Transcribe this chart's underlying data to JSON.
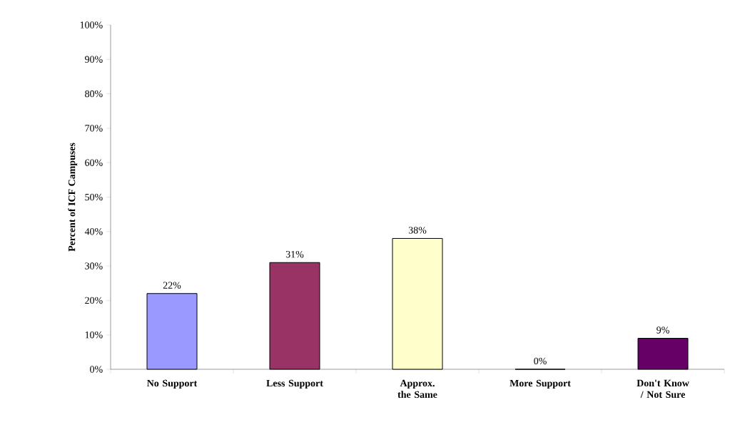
{
  "chart_data": {
    "type": "bar",
    "ylabel": "Percent of ICF Campuses",
    "categories": [
      "No Support",
      "Less Support",
      "Approx. the Same",
      "More Support",
      "Don't Know / Not Sure"
    ],
    "values": [
      22,
      31,
      38,
      0,
      9
    ],
    "value_labels": [
      "22%",
      "31%",
      "38%",
      "0%",
      "9%"
    ],
    "colors": [
      "#9999ff",
      "#993366",
      "#ffffcc",
      "#ffffff",
      "#660066"
    ],
    "ylim": [
      0,
      100
    ],
    "yticks": [
      {
        "value": 0,
        "label": "0%"
      },
      {
        "value": 10,
        "label": "10%"
      },
      {
        "value": 20,
        "label": "20%"
      },
      {
        "value": 30,
        "label": "30%"
      },
      {
        "value": 40,
        "label": "40%"
      },
      {
        "value": 50,
        "label": "50%"
      },
      {
        "value": 60,
        "label": "60%"
      },
      {
        "value": 70,
        "label": "70%"
      },
      {
        "value": 80,
        "label": "80%"
      },
      {
        "value": 90,
        "label": "90%"
      },
      {
        "value": 100,
        "label": "100%"
      }
    ],
    "grid": false
  }
}
